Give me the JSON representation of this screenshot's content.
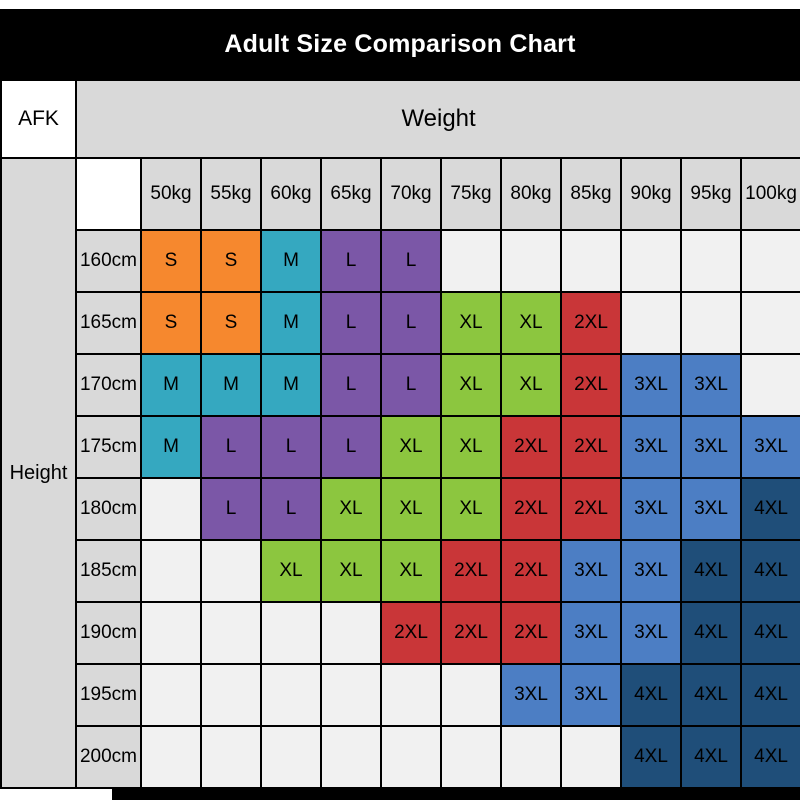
{
  "chart_data": {
    "type": "heatmap",
    "title": "Adult Size Comparison Chart",
    "corner_label": "AFK",
    "x_label": "Weight",
    "y_label": "Height",
    "x_ticks": [
      "50kg",
      "55kg",
      "60kg",
      "65kg",
      "70kg",
      "75kg",
      "80kg",
      "85kg",
      "90kg",
      "95kg",
      "100kg"
    ],
    "y_ticks": [
      "160cm",
      "165cm",
      "170cm",
      "175cm",
      "180cm",
      "185cm",
      "190cm",
      "195cm",
      "200cm"
    ],
    "cell_values": [
      [
        "S",
        "S",
        "M",
        "L",
        "L",
        "",
        "",
        "",
        "",
        "",
        ""
      ],
      [
        "S",
        "S",
        "M",
        "L",
        "L",
        "XL",
        "XL",
        "2XL",
        "",
        "",
        ""
      ],
      [
        "M",
        "M",
        "M",
        "L",
        "L",
        "XL",
        "XL",
        "2XL",
        "3XL",
        "3XL",
        ""
      ],
      [
        "M",
        "L",
        "L",
        "L",
        "XL",
        "XL",
        "2XL",
        "2XL",
        "3XL",
        "3XL",
        "3XL"
      ],
      [
        "",
        "L",
        "L",
        "XL",
        "XL",
        "XL",
        "2XL",
        "2XL",
        "3XL",
        "3XL",
        "4XL"
      ],
      [
        "",
        "",
        "XL",
        "XL",
        "XL",
        "2XL",
        "2XL",
        "3XL",
        "3XL",
        "4XL",
        "4XL"
      ],
      [
        "",
        "",
        "",
        "",
        "2XL",
        "2XL",
        "2XL",
        "3XL",
        "3XL",
        "4XL",
        "4XL"
      ],
      [
        "",
        "",
        "",
        "",
        "",
        "",
        "3XL",
        "3XL",
        "4XL",
        "4XL",
        "4XL"
      ],
      [
        "",
        "",
        "",
        "",
        "",
        "",
        "",
        "",
        "4XL",
        "4XL",
        "4XL"
      ]
    ],
    "size_colors": {
      "S": "#F6882E",
      "M": "#35A8C0",
      "L": "#7B57A7",
      "XL": "#8CC63F",
      "2XL": "#C93638",
      "3XL": "#4C7EC4",
      "4XL": "#1F4E79"
    },
    "colors": {
      "title_bar_bg": "#000000",
      "title_text": "#FFFFFF",
      "header_bg": "#D9D9D9",
      "empty_cell_bg": "#F1F1F1",
      "grid_border": "#000000",
      "size_text": "#FFFFFF"
    }
  }
}
